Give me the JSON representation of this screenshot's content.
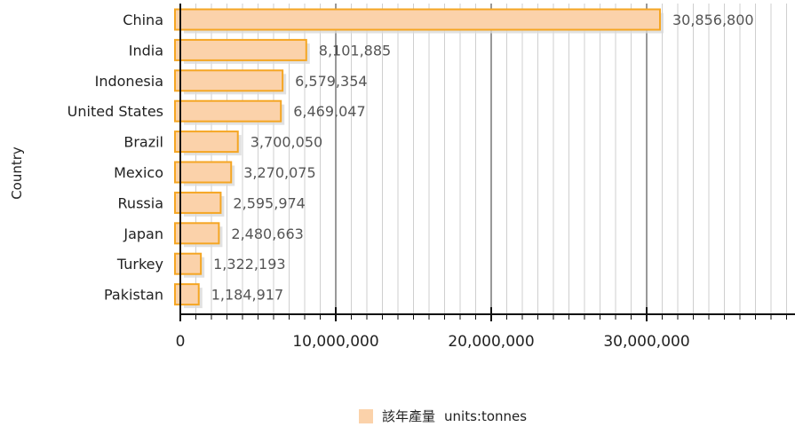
{
  "chart_data": {
    "type": "bar",
    "orientation": "horizontal",
    "categories": [
      "China",
      "India",
      "Indonesia",
      "United States",
      "Brazil",
      "Mexico",
      "Russia",
      "Japan",
      "Turkey",
      "Pakistan"
    ],
    "series": [
      {
        "name": "該年產量",
        "values": [
          30856800,
          8101885,
          6579354,
          6469047,
          3700050,
          3270075,
          2595974,
          2480663,
          1322193,
          1184917
        ]
      }
    ],
    "value_labels": [
      "30,856,800",
      "8,101,885",
      "6,579,354",
      "6,469,047",
      "3,700,050",
      "3,270,075",
      "2,595,974",
      "2,480,663",
      "1,322,193",
      "1,184,917"
    ],
    "xlabel": "",
    "ylabel": "Country",
    "xlim": [
      0,
      39500000
    ],
    "x_ticks": [
      0,
      10000000,
      20000000,
      30000000
    ],
    "x_tick_labels": [
      "0",
      "10,000,000",
      "20,000,000",
      "30,000,000"
    ],
    "grid": true,
    "legend": {
      "position": "bottom",
      "series_label": "該年產量",
      "units_label": "units:tonnes"
    },
    "colors": {
      "bar_fill": "#fbd2aa",
      "bar_edge": "#f5a623",
      "bar_shadow": "#d9d9d9",
      "major_grid": "#333333",
      "minor_grid": "#cfcfcf"
    }
  }
}
